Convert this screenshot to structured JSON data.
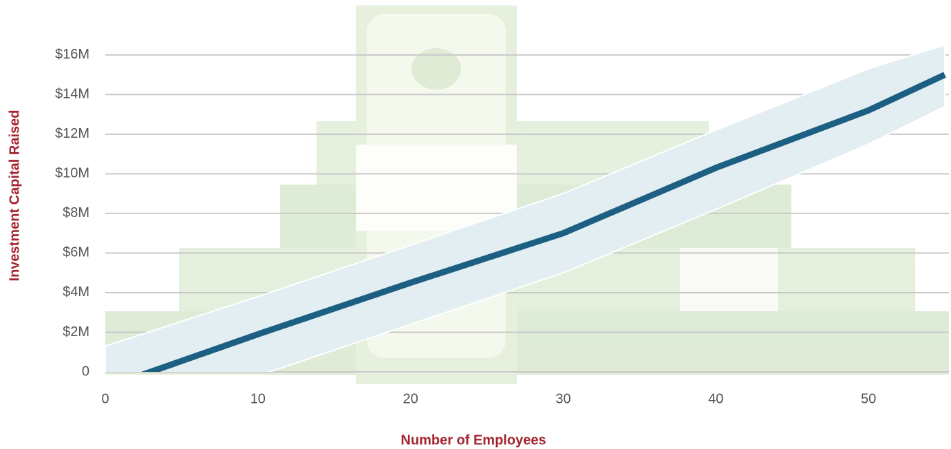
{
  "chart_data": {
    "type": "line",
    "x_label": "Number of Employees",
    "y_label": "Investment Capital Raised",
    "x": [
      0,
      10,
      20,
      30,
      40,
      50,
      55
    ],
    "series": [
      {
        "color": "#1d5f82",
        "values": [
          -0.8,
          1.9,
          4.5,
          7.0,
          10.3,
          13.2,
          15.0
        ]
      }
    ],
    "band": {
      "color": "#e2eef2",
      "upper": [
        1.3,
        3.8,
        6.4,
        9.0,
        12.2,
        15.3,
        16.5
      ],
      "lower": [
        -3.0,
        -0.2,
        2.4,
        5.0,
        8.2,
        11.5,
        13.4
      ]
    },
    "xlim": [
      0,
      55
    ],
    "xticks": [
      0,
      10,
      20,
      30,
      40,
      50
    ],
    "ylim": [
      0,
      17
    ],
    "yticks": [
      0,
      {
        "value": 2,
        "label": "$2M"
      },
      {
        "value": 4,
        "label": "$4M"
      },
      {
        "value": 6,
        "label": "$6M"
      },
      {
        "value": 8,
        "label": "$8M"
      },
      {
        "value": 10,
        "label": "$10M"
      },
      {
        "value": 12,
        "label": "$12M"
      },
      {
        "value": 14,
        "label": "$14M"
      },
      {
        "value": 16,
        "label": "$16M"
      }
    ],
    "grid": true
  }
}
